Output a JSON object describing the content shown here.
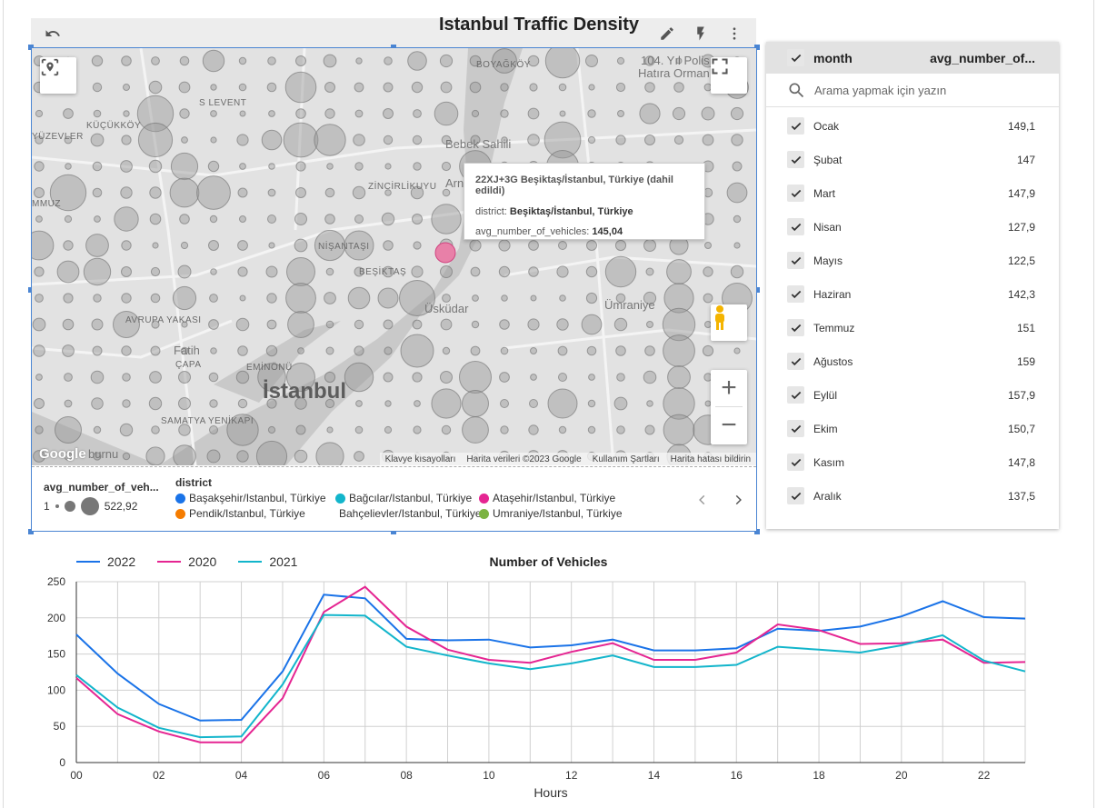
{
  "map": {
    "title": "Istanbul Traffic Density",
    "toolbar": {
      "undo_icon": "undo-icon",
      "edit_icon": "pencil-icon",
      "bolt_icon": "lightning-icon",
      "more_icon": "more-vert-icon"
    },
    "labels": {
      "bogazkoy": "BOYAĞKÖY",
      "hatira": "104. Yıl Polis",
      "hatira2": "Hatıra Ormanı",
      "levent": "S LEVENT",
      "kucukkoy": "KÜÇÜKKÖY",
      "yuzevler": "YÜZEVLER",
      "bebek": "Bebek Sahili",
      "zincirlikuyu": "ZİNCİRLİKUYU",
      "arn": "Arn",
      "mmuz": "MMUZ",
      "nisantasi": "NİŞANTAŞI",
      "besiktas": "BEŞİKTAŞ",
      "uskudar": "Üsküdar",
      "umraniye": "Ümraniye",
      "avrupa": "AVRUPA YAKASI",
      "fatih": "Fatih",
      "capa": "ÇAPA",
      "eminonu": "EMİNÖNÜ",
      "istanbul": "İstanbul",
      "samatya": "SAMATYA",
      "yenikapi": "YENİKAPI",
      "burnu": "burnu"
    },
    "google_logo": "Google",
    "attribution": [
      "Klavye kısayolları",
      "Harita verileri ©2023 Google",
      "Kullanım Şartları",
      "Harita hatası bildirin"
    ],
    "tooltip": {
      "title": "22XJ+3G Beşiktaş/İstanbul, Türkiye (dahil edildi)",
      "district_label": "district: ",
      "district_value": "Beşiktaş/İstanbul, Türkiye",
      "metric_label": "avg_number_of_vehicles: ",
      "metric_value": "145,04"
    },
    "size_legend": {
      "title": "avg_number_of_veh...",
      "min": "1",
      "max": "522,92"
    },
    "district_legend": {
      "title": "district",
      "items": [
        {
          "label": "Başakşehir/Istanbul, Türkiye",
          "color": "#1a73e8"
        },
        {
          "label": "Bağcılar/Istanbul, Türkiye",
          "color": "#12b5cb"
        },
        {
          "label": "Ataşehir/Istanbul, Türkiye",
          "color": "#e52592"
        },
        {
          "label": "Pendik/Istanbul, Türkiye",
          "color": "#f57c00"
        },
        {
          "label": "Bahçelievler/Istanbul, Türkiye",
          "color": "#f9ab00"
        },
        {
          "label": "Umraniye/Istanbul, Türkiye",
          "color": "#7cb342"
        }
      ]
    }
  },
  "filter": {
    "header_dimension": "month",
    "header_metric": "avg_number_of...",
    "search_placeholder": "Arama yapmak için yazın",
    "rows": [
      {
        "label": "Ocak",
        "value": "149,1"
      },
      {
        "label": "Şubat",
        "value": "147"
      },
      {
        "label": "Mart",
        "value": "147,9"
      },
      {
        "label": "Nisan",
        "value": "127,9"
      },
      {
        "label": "Mayıs",
        "value": "122,5"
      },
      {
        "label": "Haziran",
        "value": "142,3"
      },
      {
        "label": "Temmuz",
        "value": "151"
      },
      {
        "label": "Ağustos",
        "value": "159"
      },
      {
        "label": "Eylül",
        "value": "157,9"
      },
      {
        "label": "Ekim",
        "value": "150,7"
      },
      {
        "label": "Kasım",
        "value": "147,8"
      },
      {
        "label": "Aralık",
        "value": "137,5"
      }
    ]
  },
  "chart_data": {
    "type": "line",
    "title": "Number of Vehicles",
    "xlabel": "Hours",
    "ylabel": "",
    "x": [
      0,
      1,
      2,
      3,
      4,
      5,
      6,
      7,
      8,
      9,
      10,
      11,
      12,
      13,
      14,
      15,
      16,
      17,
      18,
      19,
      20,
      21,
      22,
      23
    ],
    "xtick_labels": [
      "00",
      "02",
      "04",
      "06",
      "08",
      "10",
      "12",
      "14",
      "16",
      "18",
      "20",
      "22"
    ],
    "yticks": [
      0,
      50,
      100,
      150,
      200,
      250
    ],
    "ylim": [
      0,
      250
    ],
    "xlim": [
      0,
      23
    ],
    "grid": true,
    "legend_position": "top-left",
    "series": [
      {
        "name": "2022",
        "color": "#1a73e8",
        "values": [
          177,
          123,
          81,
          58,
          59,
          126,
          232,
          227,
          171,
          169,
          170,
          159,
          162,
          170,
          155,
          155,
          158,
          185,
          182,
          188,
          202,
          223,
          201,
          199
        ]
      },
      {
        "name": "2020",
        "color": "#e52592",
        "values": [
          117,
          67,
          43,
          28,
          28,
          89,
          208,
          243,
          188,
          156,
          142,
          138,
          153,
          165,
          142,
          142,
          152,
          191,
          183,
          164,
          165,
          170,
          138,
          139
        ]
      },
      {
        "name": "2021",
        "color": "#12b5cb",
        "values": [
          121,
          76,
          48,
          35,
          36,
          108,
          204,
          203,
          160,
          148,
          137,
          129,
          137,
          148,
          132,
          132,
          135,
          160,
          156,
          152,
          162,
          176,
          141,
          126
        ]
      }
    ]
  }
}
